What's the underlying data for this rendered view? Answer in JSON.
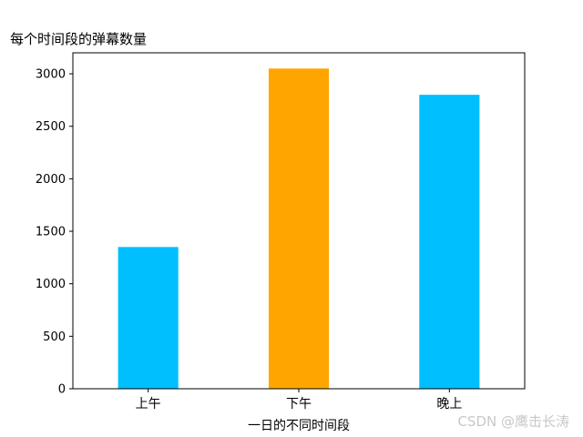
{
  "chart_data": {
    "type": "bar",
    "title": "每个时间段的弹幕数量",
    "xlabel": "一日的不同时间段",
    "ylabel": "",
    "categories": [
      "上午",
      "下午",
      "晚上"
    ],
    "values": [
      1350,
      3050,
      2800
    ],
    "bar_colors": [
      "#00bfff",
      "#ffa500",
      "#00bfff"
    ],
    "ylim": [
      0,
      3200
    ],
    "yticks": [
      0,
      500,
      1000,
      1500,
      2000,
      2500,
      3000
    ],
    "grid": false,
    "legend": "none"
  },
  "watermark": "CSDN @鹰击长涛"
}
